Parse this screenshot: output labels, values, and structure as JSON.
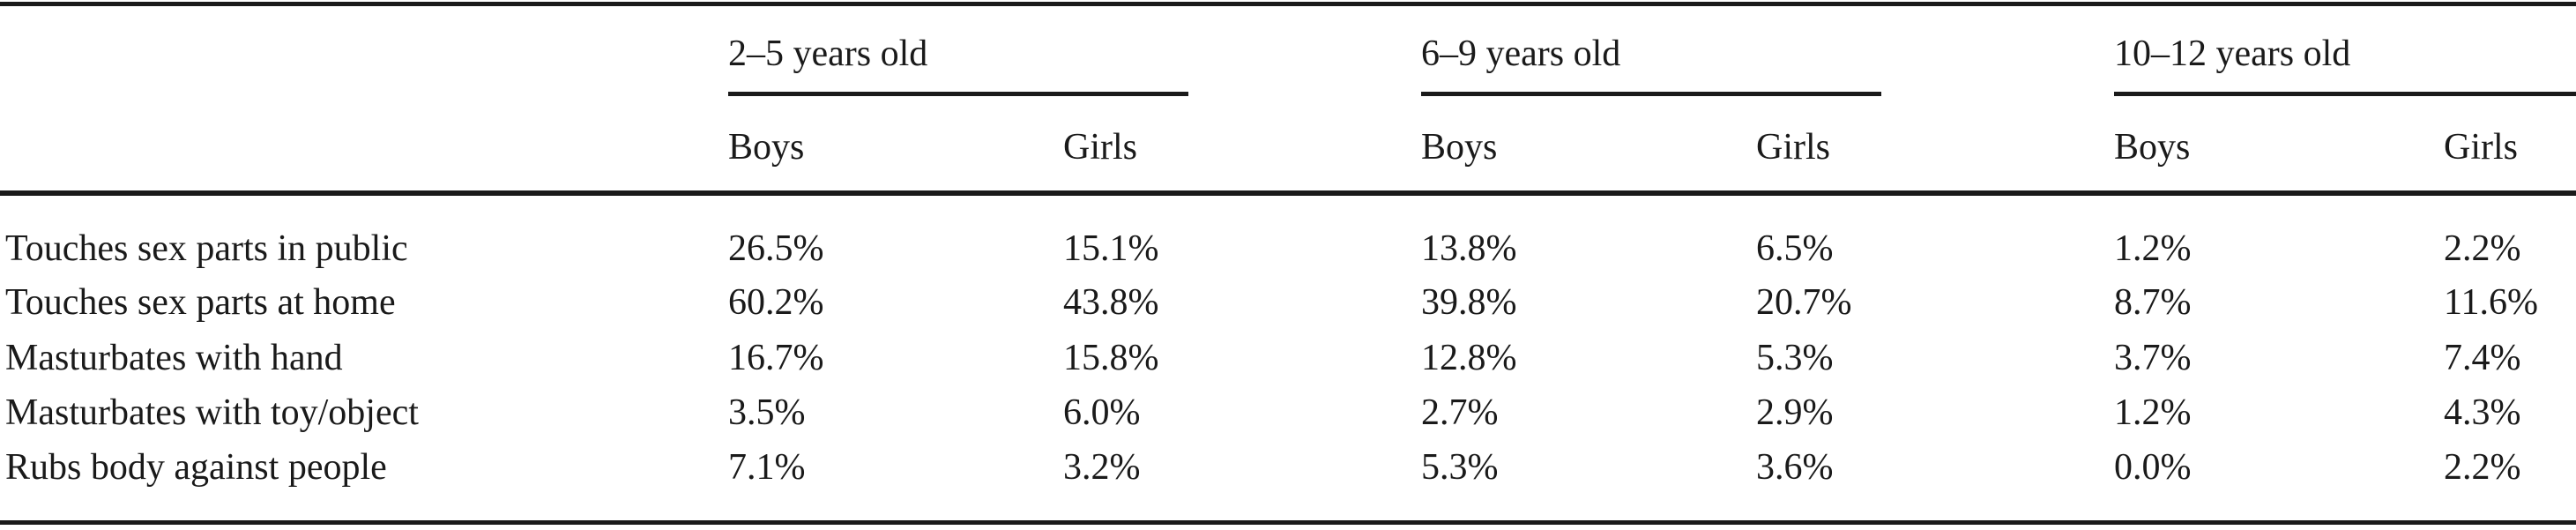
{
  "table": {
    "groups": [
      {
        "label": "2–5 years old"
      },
      {
        "label": "6–9 years old"
      },
      {
        "label": "10–12 years old"
      }
    ],
    "subheaders": [
      "Boys",
      "Girls",
      "Boys",
      "Girls",
      "Boys",
      "Girls"
    ],
    "rows": [
      {
        "label": "Touches sex parts in public",
        "values": [
          "26.5%",
          "15.1%",
          "13.8%",
          "6.5%",
          "1.2%",
          "2.2%"
        ]
      },
      {
        "label": "Touches sex parts at home",
        "values": [
          "60.2%",
          "43.8%",
          "39.8%",
          "20.7%",
          "8.7%",
          "11.6%"
        ]
      },
      {
        "label": "Masturbates with hand",
        "values": [
          "16.7%",
          "15.8%",
          "12.8%",
          "5.3%",
          "3.7%",
          "7.4%"
        ]
      },
      {
        "label": "Masturbates with toy/object",
        "values": [
          "3.5%",
          "6.0%",
          "2.7%",
          "2.9%",
          "1.2%",
          "4.3%"
        ]
      },
      {
        "label": "Rubs body against people",
        "values": [
          "7.1%",
          "3.2%",
          "5.3%",
          "3.6%",
          "0.0%",
          "2.2%"
        ]
      }
    ]
  }
}
